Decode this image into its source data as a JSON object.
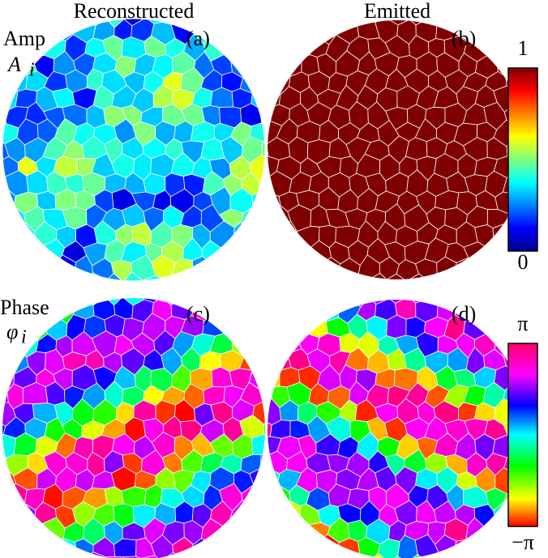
{
  "columns": {
    "left": "Reconstructed",
    "right": "Emitted"
  },
  "rows": {
    "amp": {
      "label": "Amp",
      "symbol": "A",
      "subscript": "i"
    },
    "phase": {
      "label": "Phase",
      "symbol": "φ",
      "subscript": "i"
    }
  },
  "panels": {
    "a": "(a)",
    "b": "(b)",
    "c": "(c)",
    "d": "(d)"
  },
  "colorbars": {
    "amp": {
      "top": "1",
      "bottom": "0"
    },
    "phase": {
      "top": "π",
      "bottom": "−π"
    }
  }
}
